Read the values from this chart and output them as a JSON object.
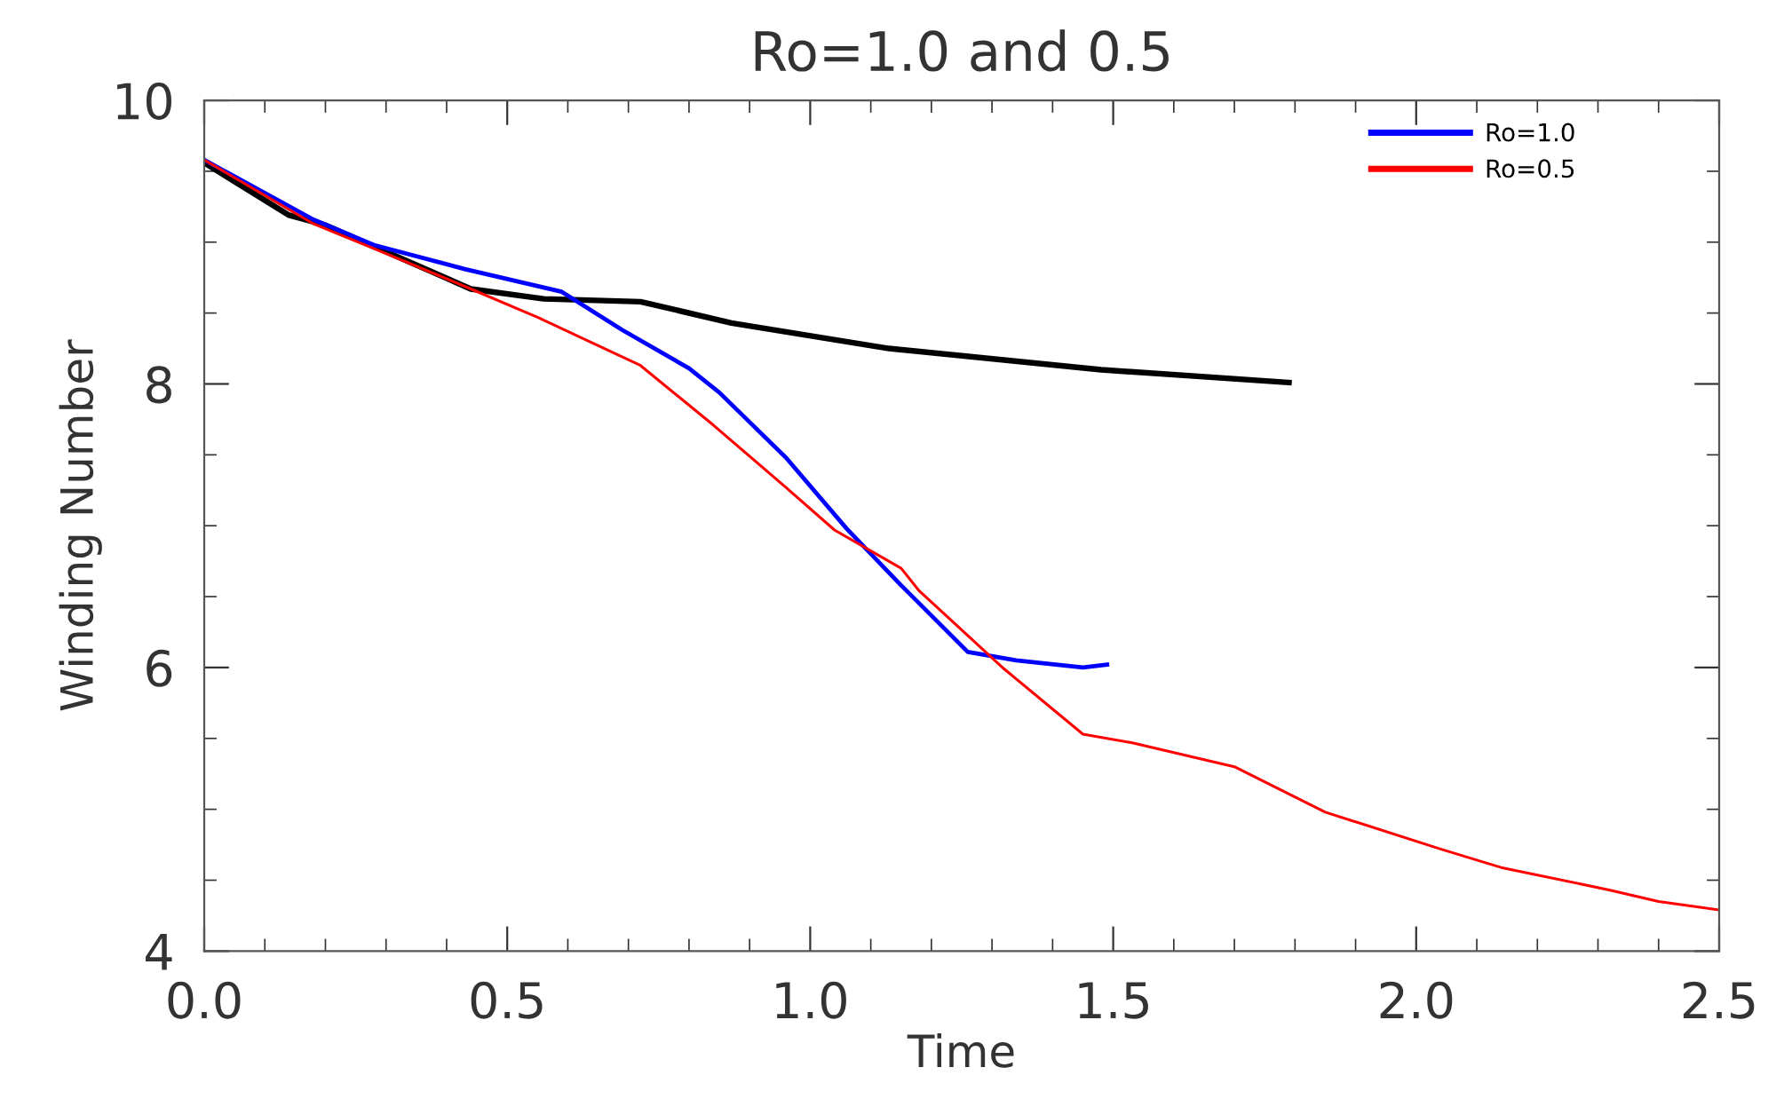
{
  "chart_data": {
    "type": "line",
    "title": "Ro=1.0 and 0.5",
    "xlabel": "Time",
    "ylabel": "Winding Number",
    "xlim": [
      0,
      2.5
    ],
    "ylim": [
      4,
      10
    ],
    "xticks": [
      {
        "value": 0,
        "label": "0.0"
      },
      {
        "value": 0.1,
        "label": null
      },
      {
        "value": 0.2,
        "label": null
      },
      {
        "value": 0.3,
        "label": null
      },
      {
        "value": 0.4,
        "label": null
      },
      0.5,
      {
        "value": 0.6,
        "label": null
      },
      {
        "value": 0.7,
        "label": null
      },
      {
        "value": 0.8,
        "label": null
      },
      {
        "value": 0.9,
        "label": null
      },
      {
        "value": 1,
        "label": "1.0"
      },
      {
        "value": 1.1,
        "label": null
      },
      {
        "value": 1.2,
        "label": null
      },
      {
        "value": 1.3,
        "label": null
      },
      {
        "value": 1.4,
        "label": null
      },
      1.5,
      {
        "value": 1.6,
        "label": null
      },
      {
        "value": 1.7,
        "label": null
      },
      {
        "value": 1.8,
        "label": null
      },
      {
        "value": 1.9,
        "label": null
      },
      {
        "value": 2,
        "label": "2.0"
      },
      {
        "value": 2.1,
        "label": null
      },
      {
        "value": 2.2,
        "label": null
      },
      {
        "value": 2.3,
        "label": null
      },
      {
        "value": 2.4,
        "label": null
      },
      2.5
    ],
    "yticks": [
      4,
      {
        "value": 4.5,
        "label": null
      },
      {
        "value": 5,
        "label": null
      },
      {
        "value": 5.5,
        "label": null
      },
      6,
      {
        "value": 6.5,
        "label": null
      },
      {
        "value": 7,
        "label": null
      },
      {
        "value": 7.5,
        "label": null
      },
      8,
      {
        "value": 8.5,
        "label": null
      },
      {
        "value": 9,
        "label": null
      },
      {
        "value": 9.5,
        "label": null
      },
      10
    ],
    "legend": "top right",
    "grid": false,
    "marker": "none",
    "line_style": "solid",
    "series": [
      {
        "color": "#000000",
        "x": [
          0,
          0.14,
          0.2,
          0.28,
          0.44,
          0.56,
          0.72,
          0.87,
          1.13,
          1.48,
          1.79
        ],
        "values": [
          9.56,
          9.19,
          9.12,
          8.97,
          8.67,
          8.6,
          8.58,
          8.43,
          8.25,
          8.1,
          8.01
        ]
      },
      {
        "name": "Ro=1.0",
        "color": "#0000ff",
        "x": [
          0,
          0.18,
          0.28,
          0.43,
          0.59,
          0.69,
          0.8,
          0.85,
          0.96,
          1.06,
          1.15,
          1.26,
          1.34,
          1.45,
          1.49
        ],
        "values": [
          9.58,
          9.16,
          8.98,
          8.81,
          8.65,
          8.38,
          8.11,
          7.94,
          7.48,
          6.98,
          6.58,
          6.11,
          6.05,
          6.0,
          6.02
        ]
      },
      {
        "name": "Ro=0.5",
        "color": "#ff0000",
        "x": [
          0,
          0.18,
          0.3,
          0.44,
          0.55,
          0.68,
          0.72,
          0.84,
          0.96,
          1.04,
          1.15,
          1.18,
          1.32,
          1.45,
          1.53,
          1.7,
          1.85,
          2.04,
          2.14,
          2.32,
          2.4,
          2.5
        ],
        "values": [
          9.58,
          9.13,
          8.92,
          8.67,
          8.47,
          8.21,
          8.13,
          7.71,
          7.27,
          6.97,
          6.7,
          6.54,
          5.99,
          5.53,
          5.47,
          5.3,
          4.98,
          4.72,
          4.59,
          4.43,
          4.35,
          4.29
        ]
      }
    ]
  }
}
